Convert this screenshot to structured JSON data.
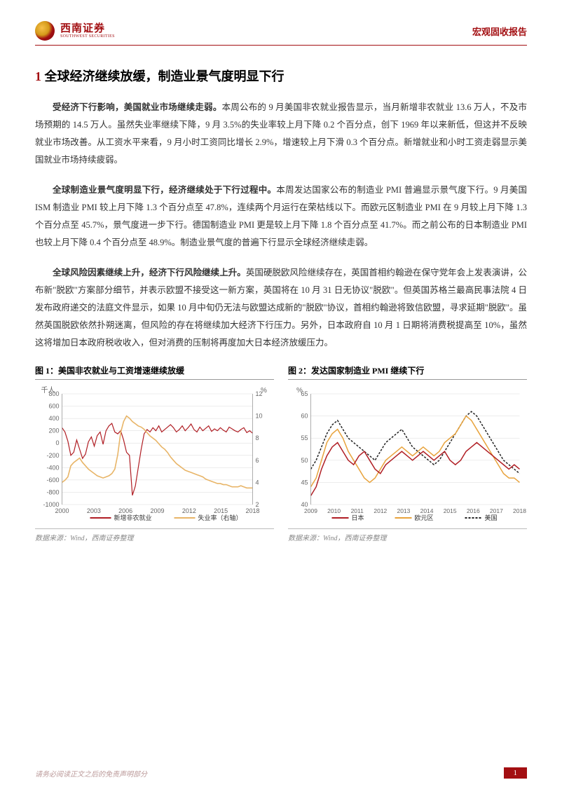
{
  "header": {
    "logo_cn": "西南证券",
    "logo_en": "SOUTHWEST SECURITIES",
    "doc_type": "宏观固收报告"
  },
  "section": {
    "num": "1",
    "title": "全球经济继续放缓，制造业景气度明显下行"
  },
  "paragraphs": {
    "p1_lead": "受经济下行影响，美国就业市场继续走弱。",
    "p1_rest": "本周公布的 9 月美国非农就业报告显示，当月新增非农就业 13.6 万人，不及市场预期的 14.5 万人。虽然失业率继续下降，9 月 3.5%的失业率较上月下降 0.2 个百分点，创下 1969 年以来新低，但这并不反映就业市场改善。从工资水平来看，9 月小时工资同比增长 2.9%，增速较上月下滑 0.3 个百分点。新增就业和小时工资走弱显示美国就业市场持续疲弱。",
    "p2_lead": "全球制造业景气度明显下行，经济继续处于下行过程中。",
    "p2_rest": "本周发达国家公布的制造业 PMI 普遍显示景气度下行。9 月美国 ISM 制造业 PMI 较上月下降 1.3 个百分点至 47.8%，连续两个月运行在荣枯线以下。而欧元区制造业 PMI 在 9 月较上月下降 1.3 个百分点至 45.7%，景气度进一步下行。德国制造业 PMI 更是较上月下降 1.8 个百分点至 41.7%。而之前公布的日本制造业 PMI 也较上月下降 0.4 个百分点至 48.9%。制造业景气度的普遍下行显示全球经济继续走弱。",
    "p3_lead": "全球风险因素继续上升，经济下行风险继续上升。",
    "p3_rest": "英国硬脱欧风险继续存在，英国首相约翰逊在保守党年会上发表演讲，公布新\"脱欧\"方案部分细节，并表示欧盟不接受这一新方案，英国将在 10 月 31 日无协议\"脱欧\"。但英国苏格兰最高民事法院 4 日发布政府递交的法庭文件显示，如果 10 月中旬仍无法与欧盟达成新的\"脱欧\"协议，首相约翰逊将致信欧盟，寻求延期\"脱欧\"。虽然英国脱欧依然扑朔迷离，但风险的存在将继续加大经济下行压力。另外，日本政府自 10 月 1 日期将消费税提高至 10%，虽然这将增加日本政府税收收入，但对消费的压制将再度加大日本经济放缓压力。"
  },
  "chart1": {
    "title": "图 1：美国非农就业与工资增速继续放缓",
    "source": "数据来源：Wind，西南证券整理",
    "y_left_label": "千人",
    "y_right_label": "%",
    "y_left_ticks": [
      800,
      600,
      400,
      200,
      0,
      -200,
      -400,
      -600,
      -800,
      -1000
    ],
    "y_right_ticks": [
      12,
      10,
      8,
      6,
      4,
      2
    ],
    "x_ticks": [
      "2000",
      "2003",
      "2006",
      "2009",
      "2012",
      "2015",
      "2018"
    ],
    "legend": [
      "新增非农就业",
      "失业率（右轴）"
    ],
    "colors": {
      "series1": "#b01e24",
      "series2": "#e8b568",
      "grid": "#d9d9d9",
      "text": "#666"
    },
    "series_payroll": [
      250,
      180,
      30,
      -200,
      -150,
      50,
      -100,
      -250,
      -180,
      20,
      100,
      -50,
      120,
      180,
      -20,
      200,
      280,
      320,
      180,
      150,
      200,
      50,
      -150,
      -200,
      -850,
      -700,
      -400,
      -100,
      150,
      220,
      180,
      250,
      200,
      280,
      180,
      220,
      260,
      300,
      250,
      180,
      220,
      280,
      200,
      250,
      310,
      220,
      180,
      260,
      200,
      240,
      280,
      190,
      230,
      200,
      250,
      210,
      180,
      260,
      230,
      200,
      180,
      220,
      250,
      170,
      200,
      160
    ],
    "series_unemp": [
      4.0,
      4.2,
      4.5,
      5.5,
      5.8,
      6.0,
      6.2,
      5.8,
      5.5,
      5.2,
      5.0,
      4.8,
      4.6,
      4.5,
      4.4,
      4.5,
      4.6,
      4.8,
      5.2,
      6.5,
      8.5,
      9.5,
      10.0,
      9.8,
      9.5,
      9.3,
      9.1,
      9.0,
      8.8,
      8.5,
      8.2,
      8.0,
      7.8,
      7.5,
      7.2,
      7.0,
      6.7,
      6.3,
      6.0,
      5.7,
      5.5,
      5.3,
      5.1,
      5.0,
      4.9,
      4.8,
      4.7,
      4.6,
      4.5,
      4.3,
      4.2,
      4.1,
      4.0,
      3.9,
      3.9,
      3.8,
      3.8,
      3.7,
      3.6,
      3.6,
      3.6,
      3.7,
      3.6,
      3.5,
      3.5,
      3.5
    ]
  },
  "chart2": {
    "title": "图 2：发达国家制造业 PMI 继续下行",
    "source": "数据来源：Wind，西南证券整理",
    "y_label": "%",
    "y_ticks": [
      65,
      60,
      55,
      50,
      45,
      40
    ],
    "x_ticks": [
      "2009",
      "2010",
      "2011",
      "2012",
      "2013",
      "2014",
      "2015",
      "2016",
      "2017",
      "2018"
    ],
    "legend": [
      "日本",
      "欧元区",
      "美国"
    ],
    "colors": {
      "japan": "#b01e24",
      "euro": "#e8a33c",
      "us": "#222",
      "grid": "#d9d9d9",
      "text": "#666"
    },
    "series_japan": [
      42,
      44,
      48,
      51,
      53,
      54,
      52,
      50,
      49,
      51,
      52,
      50,
      48,
      47,
      49,
      50,
      51,
      52,
      51,
      50,
      51,
      52,
      51,
      50,
      51,
      52,
      50,
      49,
      50,
      52,
      53,
      54,
      53,
      52,
      51,
      50,
      49,
      48,
      49,
      48
    ],
    "series_euro": [
      44,
      46,
      50,
      54,
      56,
      57,
      55,
      52,
      50,
      48,
      46,
      45,
      46,
      48,
      50,
      51,
      52,
      53,
      52,
      51,
      52,
      53,
      52,
      51,
      52,
      54,
      55,
      56,
      58,
      60,
      59,
      57,
      55,
      53,
      51,
      49,
      47,
      46,
      46,
      45
    ],
    "series_us": [
      48,
      50,
      53,
      56,
      58,
      59,
      57,
      55,
      54,
      53,
      52,
      51,
      50,
      52,
      54,
      55,
      56,
      57,
      55,
      53,
      52,
      51,
      50,
      49,
      50,
      52,
      54,
      56,
      58,
      60,
      61,
      60,
      58,
      56,
      54,
      52,
      50,
      49,
      48,
      47
    ]
  },
  "footer": {
    "note": "请务必阅读正文之后的免责声明部分",
    "page": "1"
  }
}
